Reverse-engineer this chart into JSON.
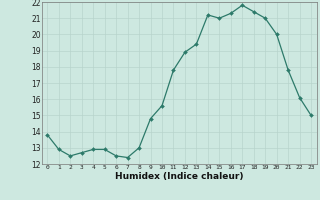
{
  "x": [
    0,
    1,
    2,
    3,
    4,
    5,
    6,
    7,
    8,
    9,
    10,
    11,
    12,
    13,
    14,
    15,
    16,
    17,
    18,
    19,
    20,
    21,
    22,
    23
  ],
  "y": [
    13.8,
    12.9,
    12.5,
    12.7,
    12.9,
    12.9,
    12.5,
    12.4,
    13.0,
    14.8,
    15.6,
    17.8,
    18.9,
    19.4,
    21.2,
    21.0,
    21.3,
    21.8,
    21.4,
    21.0,
    20.0,
    17.8,
    16.1,
    15.0
  ],
  "xlabel": "Humidex (Indice chaleur)",
  "ylim": [
    12,
    22
  ],
  "xlim": [
    -0.5,
    23.5
  ],
  "yticks": [
    12,
    13,
    14,
    15,
    16,
    17,
    18,
    19,
    20,
    21,
    22
  ],
  "xticks": [
    0,
    1,
    2,
    3,
    4,
    5,
    6,
    7,
    8,
    9,
    10,
    11,
    12,
    13,
    14,
    15,
    16,
    17,
    18,
    19,
    20,
    21,
    22,
    23
  ],
  "line_color": "#2d7a6a",
  "marker_color": "#2d7a6a",
  "bg_color": "#cde8e0",
  "grid_color_major": "#b8d4cc",
  "grid_color_minor": "#c8dfd8"
}
